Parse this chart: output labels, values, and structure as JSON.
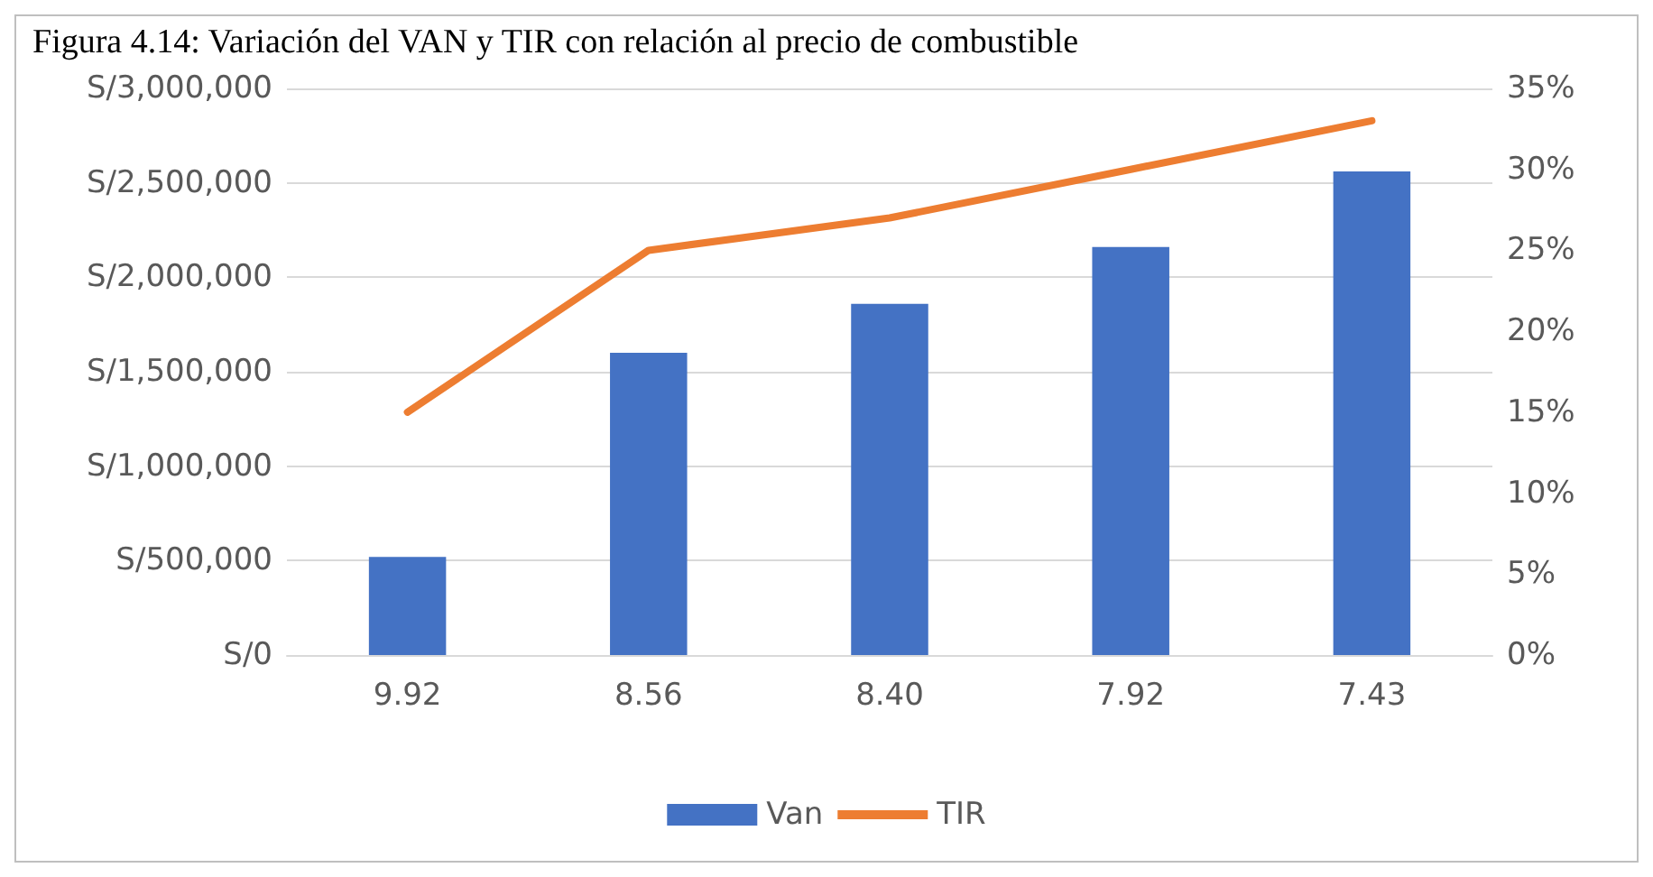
{
  "chart_data": {
    "type": "bar",
    "title": "Figura 4.14: Variación del VAN y TIR con relación al precio de combustible",
    "categories": [
      "9.92",
      "8.56",
      "8.40",
      "7.92",
      "7.43"
    ],
    "series": [
      {
        "name": "Van",
        "color": "#4472c4",
        "values": [
          520000,
          1600000,
          1860000,
          2160000,
          2560000
        ]
      },
      {
        "name": "TIR",
        "type": "line",
        "axis": "y2",
        "color": "#ed7d31",
        "values": [
          15,
          25,
          27,
          30,
          33
        ]
      }
    ],
    "ylim": [
      0,
      3000000
    ],
    "yticks": [
      {
        "value": 0,
        "label": "S/0"
      },
      {
        "value": 500000,
        "label": "S/500,000"
      },
      {
        "value": 1000000,
        "label": "S/1,000,000"
      },
      {
        "value": 1500000,
        "label": "S/1,500,000"
      },
      {
        "value": 2000000,
        "label": "S/2,000,000"
      },
      {
        "value": 2500000,
        "label": "S/2,500,000"
      },
      {
        "value": 3000000,
        "label": "S/3,000,000"
      }
    ],
    "y2lim": [
      0,
      35
    ],
    "y2ticks": [
      {
        "value": 0,
        "label": "0%"
      },
      {
        "value": 5,
        "label": "5%"
      },
      {
        "value": 10,
        "label": "10%"
      },
      {
        "value": 15,
        "label": "15%"
      },
      {
        "value": 20,
        "label": "20%"
      },
      {
        "value": 25,
        "label": "25%"
      },
      {
        "value": 30,
        "label": "30%"
      },
      {
        "value": 35,
        "label": "35%"
      }
    ],
    "grid": "y",
    "legend": "bottom",
    "marker": "none",
    "line_style": "solid"
  }
}
